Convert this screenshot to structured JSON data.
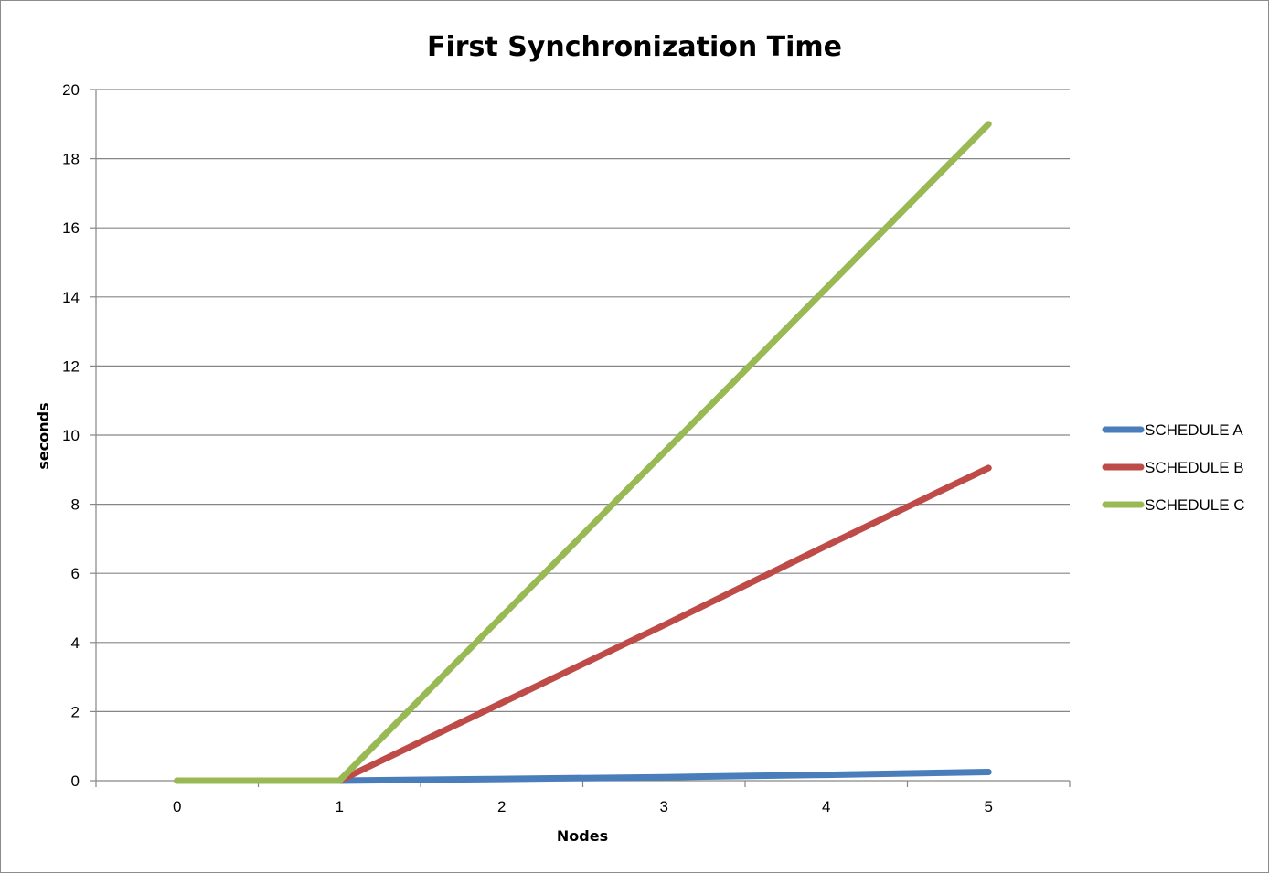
{
  "chart_data": {
    "type": "line",
    "title": "First Synchronization Time",
    "xlabel": "Nodes",
    "ylabel": "seconds",
    "x": [
      0,
      1,
      2,
      3,
      4,
      5
    ],
    "xlim": [
      -0.5,
      5.5
    ],
    "ylim": [
      0,
      20
    ],
    "y_ticks": [
      0,
      2,
      4,
      6,
      8,
      10,
      12,
      14,
      16,
      18,
      20
    ],
    "grid": true,
    "legend_position": "right",
    "series": [
      {
        "name": "SCHEDULE A",
        "color": "#4a7ebb",
        "values": [
          0,
          0,
          0.05,
          0.1,
          0.17,
          0.25
        ]
      },
      {
        "name": "SCHEDULE B",
        "color": "#be4b48",
        "values": [
          0,
          0,
          2.25,
          4.5,
          6.8,
          9.05
        ]
      },
      {
        "name": "SCHEDULE C",
        "color": "#98b954",
        "values": [
          0,
          0,
          4.75,
          9.5,
          14.25,
          19.0
        ]
      }
    ]
  }
}
